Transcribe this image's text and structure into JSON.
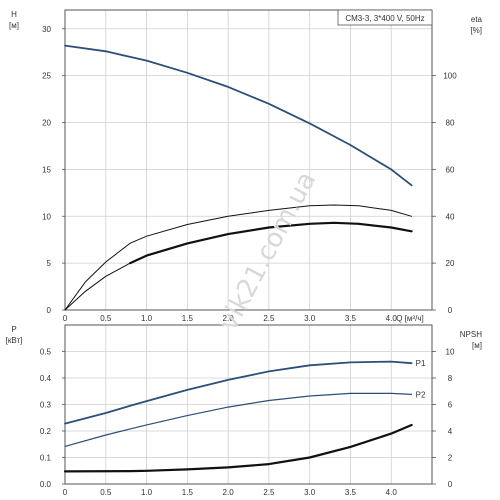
{
  "chart_data": [
    {
      "type": "line",
      "title": "CM3-3, 3*400 V, 50Hz",
      "xlabel": "Q [м³/ч]",
      "xlim": [
        0,
        4.5
      ],
      "xticks": [
        "0",
        "0.5",
        "1.0",
        "1.5",
        "2.0",
        "2.5",
        "3.0",
        "3.5",
        "4.0"
      ],
      "ylabel": "H",
      "ylabel_unit": "[м]",
      "ylim": [
        0,
        32
      ],
      "yticks": [
        "0",
        "5",
        "10",
        "15",
        "20",
        "25",
        "30"
      ],
      "y2label": "eta",
      "y2label_unit": "[%]",
      "y2lim": [
        0,
        128
      ],
      "y2ticks": [
        "0",
        "20",
        "40",
        "60",
        "80",
        "100"
      ],
      "grid": true,
      "series": [
        {
          "axis": "left",
          "color": "#2b4f78",
          "x": [
            0,
            0.5,
            0.8,
            1.0,
            1.5,
            2.0,
            2.5,
            3.0,
            3.5,
            4.0,
            4.25
          ],
          "y": [
            28.2,
            27.6,
            27.0,
            26.6,
            25.3,
            23.8,
            22.0,
            19.9,
            17.6,
            15.0,
            13.3
          ]
        },
        {
          "axis": "right",
          "color": "#111111",
          "x": [
            0,
            0.25,
            0.5,
            0.8,
            1.0,
            1.5,
            2.0,
            2.5,
            3.0,
            3.3,
            3.6,
            4.0,
            4.25
          ],
          "y": [
            0,
            12.0,
            20.5,
            28.5,
            31.5,
            36.5,
            40.0,
            42.5,
            44.5,
            44.8,
            44.5,
            42.5,
            40.0
          ]
        },
        {
          "axis": "left",
          "color": "#111111",
          "x": [
            0.8,
            1.0,
            1.5,
            2.0,
            2.5,
            3.0,
            3.3,
            3.6,
            4.0,
            4.25
          ],
          "y": [
            5.0,
            5.8,
            7.1,
            8.1,
            8.8,
            9.2,
            9.3,
            9.2,
            8.8,
            8.4
          ]
        },
        {
          "axis": "left",
          "color": "#111111",
          "x": [
            0,
            0.25,
            0.5,
            0.8
          ],
          "y": [
            0,
            2.0,
            3.6,
            5.0
          ]
        }
      ]
    },
    {
      "type": "line",
      "xlim": [
        0,
        4.5
      ],
      "xticks": [
        "0",
        "0.5",
        "1.0",
        "1.5",
        "2.0",
        "2.5",
        "3.0",
        "3.5",
        "4.0"
      ],
      "ylabel": "P",
      "ylabel_unit": "[кВт]",
      "ylim": [
        0,
        0.6
      ],
      "yticks": [
        "0.0",
        "0.1",
        "0.2",
        "0.3",
        "0.4",
        "0.5"
      ],
      "y2label": "NPSH",
      "y2label_unit": "[м]",
      "y2lim": [
        0,
        12
      ],
      "y2ticks": [
        "0",
        "2",
        "4",
        "6",
        "8",
        "10"
      ],
      "grid": true,
      "series": [
        {
          "name": "P1",
          "axis": "left",
          "color": "#2b4f78",
          "x": [
            0,
            0.5,
            0.8,
            1.0,
            1.5,
            2.0,
            2.5,
            3.0,
            3.5,
            4.0,
            4.25
          ],
          "y": [
            0.228,
            0.268,
            0.295,
            0.313,
            0.355,
            0.393,
            0.425,
            0.448,
            0.459,
            0.462,
            0.456
          ]
        },
        {
          "name": "P2",
          "axis": "left",
          "color": "#2b4f78",
          "x": [
            0,
            0.5,
            0.8,
            1.0,
            1.5,
            2.0,
            2.5,
            3.0,
            3.5,
            4.0,
            4.25
          ],
          "y": [
            0.142,
            0.185,
            0.208,
            0.223,
            0.258,
            0.29,
            0.315,
            0.332,
            0.342,
            0.342,
            0.338
          ]
        },
        {
          "axis": "right",
          "color": "#111111",
          "x": [
            0,
            0.8,
            1.0,
            1.5,
            2.0,
            2.5,
            3.0,
            3.5,
            4.0,
            4.25
          ],
          "y": [
            0.95,
            0.97,
            1.0,
            1.1,
            1.25,
            1.5,
            2.0,
            2.8,
            3.8,
            4.45
          ]
        }
      ]
    }
  ]
}
